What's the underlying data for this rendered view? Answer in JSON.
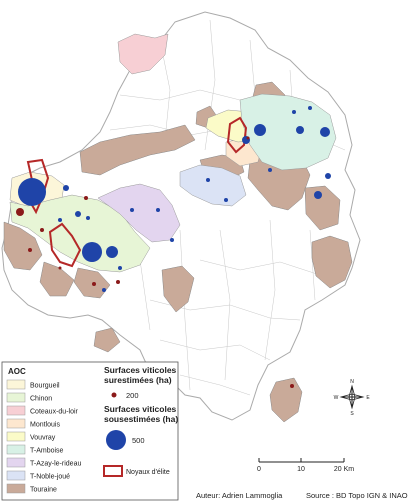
{
  "legend": {
    "aoc_title": "AOC",
    "aoc_items": [
      {
        "label": "Bourgueil",
        "color": "#fcf6d9"
      },
      {
        "label": "Chinon",
        "color": "#e7f5d6"
      },
      {
        "label": "Coteaux-du-loir",
        "color": "#f7cfd4"
      },
      {
        "label": "Montlouis",
        "color": "#fde7cf"
      },
      {
        "label": "Vouvray",
        "color": "#fbfbc8"
      },
      {
        "label": "T-Amboise",
        "color": "#d8f1e6"
      },
      {
        "label": "T-Azay-le-rideau",
        "color": "#e3d5ef"
      },
      {
        "label": "T-Noble-joué",
        "color": "#dbe3f5"
      },
      {
        "label": "Touraine",
        "color": "#c9aa99"
      }
    ],
    "over_title_1": "Surfaces viticoles",
    "over_title_2": "surestimées (ha)",
    "over_value": "200",
    "over_color": "#8b1a1a",
    "under_title_1": "Surfaces viticoles",
    "under_title_2": "sousestimées (ha)",
    "under_value": "500",
    "under_color": "#1f44a8",
    "elite_label": "Noyaux d'élite",
    "elite_color": "#b52828"
  },
  "scale": {
    "labels": [
      "0",
      "10",
      "20 Km"
    ]
  },
  "compass": {
    "n": "N",
    "s": "S",
    "e": "E",
    "w": "W"
  },
  "credits": {
    "author": "Auteur: Adrien Lammoglia",
    "source": "Source : BD Topo IGN & INAO"
  }
}
